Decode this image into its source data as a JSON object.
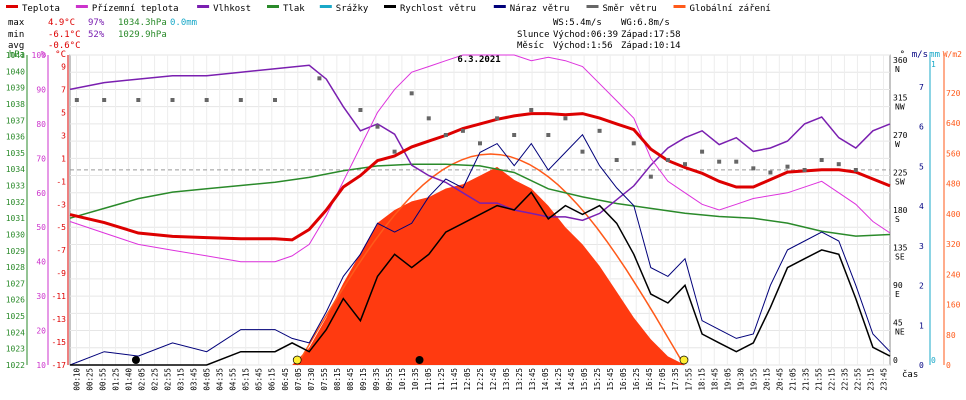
{
  "legend": [
    {
      "label": "Teplota",
      "color": "#dd0000"
    },
    {
      "label": "Přízemní teplota",
      "color": "#cc33cc"
    },
    {
      "label": "Vlhkost",
      "color": "#7a1fb0"
    },
    {
      "label": "Tlak",
      "color": "#2a8a2a"
    },
    {
      "label": "Srážky",
      "color": "#19a8c8"
    },
    {
      "label": "Rychlost větru",
      "color": "#000000"
    },
    {
      "label": "Náraz větru",
      "color": "#00007a"
    },
    {
      "label": "Směr větru",
      "color": "#666666"
    },
    {
      "label": "Globální záření",
      "color": "#ff5a1a"
    }
  ],
  "stats": {
    "max_label": "max",
    "max_temp": "4.9°C",
    "max_hum": "97%",
    "max_press": "1034.3hPa",
    "max_rain": "0.0mm",
    "min_label": "min",
    "min_temp": "-6.1°C",
    "min_hum": "52%",
    "min_press": "1029.9hPa",
    "avg_label": "avg",
    "avg_temp": "-0.6°C"
  },
  "wind_info": {
    "ws": "WS:5.4m/s",
    "wg": "WG:6.8m/s",
    "slunce": "Slunce",
    "slunce_vychod": "Východ:06:39",
    "slunce_zapad": "Západ:17:58",
    "mesic": "Měsíc",
    "mesic_vychod": "Východ:1:56",
    "mesic_zapad": "Západ:10:14"
  },
  "chart_data": {
    "type": "line",
    "title": "6.3.2021",
    "xlabel": "čas",
    "x_ticks": [
      "00:10",
      "00:25",
      "00:55",
      "01:25",
      "01:40",
      "02:05",
      "02:25",
      "02:55",
      "03:15",
      "03:45",
      "04:05",
      "04:35",
      "04:55",
      "05:15",
      "05:45",
      "06:15",
      "06:45",
      "07:05",
      "07:30",
      "07:55",
      "08:15",
      "08:45",
      "09:15",
      "09:35",
      "09:55",
      "10:15",
      "10:35",
      "11:05",
      "11:25",
      "11:45",
      "12:05",
      "12:25",
      "12:45",
      "13:05",
      "13:25",
      "13:45",
      "14:05",
      "14:25",
      "14:45",
      "15:05",
      "15:25",
      "15:45",
      "16:05",
      "16:25",
      "16:45",
      "17:05",
      "17:35",
      "17:55",
      "18:15",
      "18:45",
      "19:05",
      "19:30",
      "19:55",
      "20:15",
      "20:45",
      "21:05",
      "21:35",
      "21:55",
      "22:15",
      "22:35",
      "22:55",
      "23:15",
      "23:45"
    ],
    "axes": {
      "pressure_hPa": {
        "label": "hPa",
        "ticks": [
          "1041",
          "1040",
          "1039",
          "1038",
          "1037",
          "1036",
          "1035",
          "1034",
          "1033",
          "1032",
          "1031",
          "1030",
          "1029",
          "1028",
          "1027",
          "1026",
          "1025",
          "1024",
          "1023",
          "1022"
        ],
        "range": [
          1022,
          1041
        ]
      },
      "humidity_pct": {
        "label": "%",
        "ticks": [
          "100",
          "90",
          "80",
          "70",
          "60",
          "50",
          "40",
          "30",
          "20",
          "10"
        ],
        "range": [
          10,
          100
        ]
      },
      "temperature_C": {
        "label": "°C",
        "ticks": [
          "9",
          "7",
          "5",
          "3",
          "1",
          "-1",
          "-3",
          "-5",
          "-7",
          "-9",
          "-11",
          "-13",
          "-15",
          "-17"
        ],
        "range": [
          -17,
          10
        ]
      },
      "direction_deg": {
        "label": "°",
        "ticks": [
          "360",
          "315",
          "270",
          "225",
          "180",
          "135",
          "90",
          "45",
          "0"
        ],
        "names": [
          "N",
          "NW",
          "W",
          "SW",
          "S",
          "SE",
          "E",
          "NE"
        ]
      },
      "wind_ms": {
        "label": "m/s",
        "ticks": [
          "7",
          "6",
          "5",
          "4",
          "3",
          "2",
          "1",
          "0"
        ],
        "range": [
          0,
          7
        ]
      },
      "rain_mm": {
        "label": "mm",
        "ticks": [
          "1",
          "0"
        ]
      },
      "radiation_Wm2": {
        "label": "W/m2",
        "ticks": [
          "720",
          "640",
          "560",
          "480",
          "400",
          "320",
          "240",
          "160",
          "80",
          "0"
        ],
        "range": [
          0,
          720
        ]
      }
    },
    "series": [
      {
        "name": "Teplota",
        "unit": "°C",
        "x": [
          0,
          1,
          2,
          3,
          4,
          5,
          6,
          6.5,
          7,
          7.5,
          8,
          8.5,
          9,
          9.5,
          10,
          10.5,
          11,
          11.5,
          12,
          12.5,
          13,
          13.5,
          14,
          14.5,
          15,
          15.5,
          16,
          16.5,
          17,
          17.5,
          18,
          18.5,
          19,
          19.5,
          20,
          21,
          22,
          22.5,
          23,
          23.5,
          24
        ],
        "values": [
          -3.9,
          -4.6,
          -5.5,
          -5.8,
          -5.9,
          -6.0,
          -6.0,
          -6.1,
          -5.2,
          -3.5,
          -1.5,
          -0.5,
          0.8,
          1.2,
          2.0,
          2.5,
          3.0,
          3.6,
          4.0,
          4.4,
          4.7,
          4.9,
          4.9,
          4.8,
          4.9,
          4.5,
          4.0,
          3.5,
          1.8,
          0.8,
          0.2,
          -0.3,
          -1.0,
          -1.5,
          -1.5,
          -0.2,
          0.0,
          0.0,
          -0.2,
          -0.8,
          -1.4
        ]
      },
      {
        "name": "Přízemní teplota",
        "unit": "°C",
        "x": [
          0,
          1,
          2,
          3,
          4,
          5,
          6,
          6.5,
          7,
          7.5,
          8,
          8.5,
          9,
          9.5,
          10,
          10.5,
          11,
          11.5,
          12,
          12.5,
          13,
          13.5,
          14,
          14.5,
          15,
          15.5,
          16,
          16.5,
          17,
          17.5,
          18,
          18.5,
          19,
          19.5,
          20,
          21,
          22,
          22.5,
          23,
          23.5,
          24
        ],
        "values": [
          -4.5,
          -5.5,
          -6.5,
          -7.0,
          -7.5,
          -8.0,
          -8.0,
          -7.5,
          -6.5,
          -4.0,
          -1.0,
          2.0,
          5.0,
          7.0,
          8.5,
          9.0,
          9.5,
          10.0,
          10.0,
          10.0,
          10.0,
          9.5,
          9.8,
          9.5,
          9.0,
          7.5,
          6.0,
          4.5,
          1.0,
          -1.0,
          -2.0,
          -3.0,
          -3.5,
          -3.0,
          -2.5,
          -2.0,
          -1.0,
          -2.0,
          -3.0,
          -4.5,
          -5.5
        ]
      },
      {
        "name": "Vlhkost",
        "unit": "%",
        "x": [
          0,
          1,
          2,
          3,
          4,
          5,
          6,
          7,
          7.5,
          8,
          8.5,
          9,
          9.5,
          10,
          10.5,
          11,
          11.5,
          12,
          12.5,
          13,
          13.5,
          14,
          14.5,
          15,
          15.5,
          16,
          16.5,
          17,
          17.5,
          18,
          18.5,
          19,
          19.5,
          20,
          20.5,
          21,
          21.5,
          22,
          22.5,
          23,
          23.5,
          24
        ],
        "values": [
          90,
          92,
          93,
          94,
          94,
          95,
          96,
          97,
          93,
          85,
          78,
          80,
          77,
          68,
          65,
          63,
          60,
          57,
          57,
          55,
          54,
          53,
          53,
          52,
          54,
          58,
          62,
          68,
          73,
          76,
          78,
          74,
          76,
          72,
          73,
          75,
          80,
          82,
          76,
          73,
          78,
          80
        ]
      },
      {
        "name": "Tlak",
        "unit": "hPa",
        "x": [
          0,
          1,
          2,
          3,
          4,
          5,
          6,
          7,
          8,
          9,
          10,
          11,
          12,
          13,
          14,
          15,
          16,
          17,
          18,
          19,
          20,
          21,
          22,
          23,
          24
        ],
        "values": [
          1031.0,
          1031.6,
          1032.2,
          1032.6,
          1032.8,
          1033.0,
          1033.2,
          1033.5,
          1033.9,
          1034.2,
          1034.3,
          1034.3,
          1034.2,
          1033.8,
          1032.8,
          1032.3,
          1031.9,
          1031.6,
          1031.3,
          1031.1,
          1031.0,
          1030.7,
          1030.2,
          1029.9,
          1030.0
        ]
      },
      {
        "name": "Rychlost větru",
        "unit": "m/s",
        "x": [
          0,
          1,
          2,
          3,
          4,
          5,
          6,
          6.5,
          7,
          7.5,
          8,
          8.5,
          9,
          9.5,
          10,
          10.5,
          11,
          11.5,
          12,
          12.5,
          13,
          13.5,
          14,
          14.5,
          15,
          15.5,
          16,
          16.5,
          17,
          17.5,
          18,
          18.5,
          19,
          19.5,
          20,
          20.5,
          21,
          21.5,
          22,
          22.5,
          23,
          23.5,
          24
        ],
        "values": [
          0,
          0,
          0,
          0,
          0,
          0.3,
          0.3,
          0.5,
          0.3,
          0.8,
          1.5,
          1.0,
          2.0,
          2.5,
          2.2,
          2.5,
          3.0,
          3.2,
          3.4,
          3.6,
          3.5,
          3.9,
          3.3,
          3.6,
          3.4,
          3.6,
          3.2,
          2.5,
          1.6,
          1.4,
          1.8,
          0.7,
          0.5,
          0.3,
          0.5,
          1.3,
          2.2,
          2.4,
          2.6,
          2.5,
          1.5,
          0.4,
          0.2
        ]
      },
      {
        "name": "Náraz větru",
        "unit": "m/s",
        "x": [
          0,
          1,
          2,
          3,
          4,
          5,
          6,
          6.5,
          7,
          7.5,
          8,
          8.5,
          9,
          9.5,
          10,
          10.5,
          11,
          11.5,
          12,
          12.5,
          13,
          13.5,
          14,
          14.5,
          15,
          15.5,
          16,
          16.5,
          17,
          17.5,
          18,
          18.5,
          19,
          19.5,
          20,
          20.5,
          21,
          21.5,
          22,
          22.5,
          23,
          23.5,
          24
        ],
        "values": [
          0,
          0.3,
          0.2,
          0.5,
          0.3,
          0.8,
          0.8,
          0.6,
          0.5,
          1.2,
          2.0,
          2.5,
          3.2,
          3.0,
          3.2,
          3.8,
          4.2,
          4.0,
          4.8,
          5.0,
          4.5,
          5.0,
          4.4,
          4.8,
          5.2,
          4.5,
          4.0,
          3.6,
          2.2,
          2.0,
          2.4,
          1.0,
          0.8,
          0.6,
          0.7,
          1.8,
          2.6,
          2.8,
          3.0,
          2.8,
          1.8,
          0.7,
          0.3
        ]
      },
      {
        "name": "Směr větru",
        "unit": "°",
        "type": "scatter",
        "x": [
          0.2,
          1,
          2,
          3,
          4,
          5,
          6,
          7.3,
          8.5,
          9,
          9.5,
          10,
          10.5,
          11,
          11.5,
          12,
          12.5,
          13,
          13.5,
          14,
          14.5,
          15,
          15.5,
          16,
          16.5,
          17,
          17.5,
          18,
          18.5,
          19,
          19.5,
          20,
          20.5,
          21,
          21.5,
          22,
          22.5,
          23
        ],
        "values": [
          312,
          312,
          312,
          312,
          312,
          312,
          312,
          338,
          300,
          280,
          250,
          320,
          290,
          270,
          275,
          260,
          290,
          270,
          300,
          270,
          290,
          250,
          275,
          240,
          260,
          220,
          240,
          235,
          250,
          238,
          238,
          230,
          225,
          232,
          228,
          240,
          235,
          228
        ]
      },
      {
        "name": "Globální záření",
        "unit": "W/m2",
        "type": "area",
        "x": [
          6.5,
          7,
          7.5,
          8,
          8.5,
          9,
          9.5,
          10,
          10.5,
          11,
          11.5,
          12,
          12.5,
          13,
          13.5,
          14,
          14.5,
          15,
          15.5,
          16,
          16.5,
          17,
          17.5,
          18
        ],
        "values": [
          0,
          40,
          110,
          190,
          260,
          330,
          360,
          380,
          390,
          410,
          420,
          440,
          460,
          430,
          410,
          370,
          320,
          280,
          230,
          170,
          110,
          60,
          20,
          0
        ]
      }
    ]
  }
}
